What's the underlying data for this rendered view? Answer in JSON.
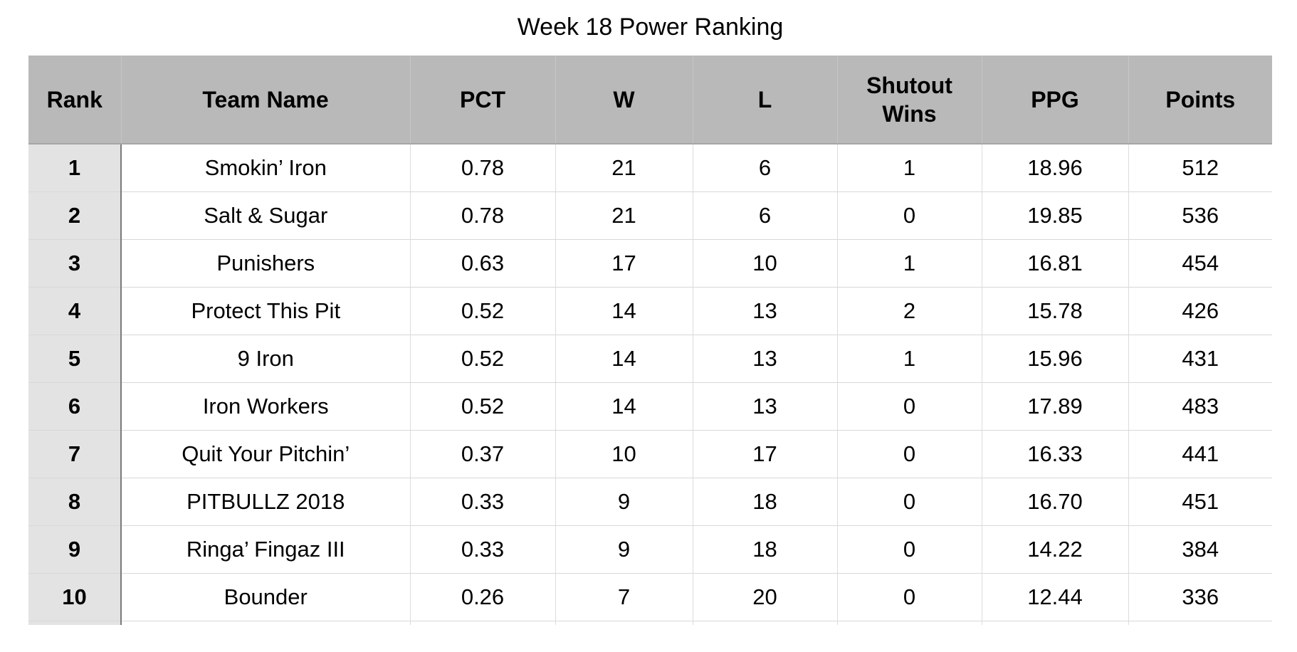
{
  "title": "Week 18 Power Ranking",
  "colors": {
    "text": "#000000",
    "header_bg": "#b9b9b9",
    "rank_bg": "#e3e3e3",
    "row_border": "#d8d8d8",
    "col_border": "#dcdcdc",
    "header_sep": "#c6c6c6",
    "header_bottom": "#a6a6a6",
    "rank_divider": "#7a7a7a"
  },
  "chart_data": {
    "type": "table",
    "title": "Week 18 Power Ranking",
    "columns": [
      "Rank",
      "Team Name",
      "PCT",
      "W",
      "L",
      "Shutout Wins",
      "PPG",
      "Points"
    ],
    "column_keys": [
      "rank",
      "team-name",
      "pct",
      "w",
      "l",
      "shutout-wins",
      "ppg",
      "points"
    ],
    "rows": [
      [
        "1",
        "Smokin’ Iron",
        "0.78",
        "21",
        "6",
        "1",
        "18.96",
        "512"
      ],
      [
        "2",
        "Salt & Sugar",
        "0.78",
        "21",
        "6",
        "0",
        "19.85",
        "536"
      ],
      [
        "3",
        "Punishers",
        "0.63",
        "17",
        "10",
        "1",
        "16.81",
        "454"
      ],
      [
        "4",
        "Protect This Pit",
        "0.52",
        "14",
        "13",
        "2",
        "15.78",
        "426"
      ],
      [
        "5",
        "9 Iron",
        "0.52",
        "14",
        "13",
        "1",
        "15.96",
        "431"
      ],
      [
        "6",
        "Iron Workers",
        "0.52",
        "14",
        "13",
        "0",
        "17.89",
        "483"
      ],
      [
        "7",
        "Quit Your Pitchin’",
        "0.37",
        "10",
        "17",
        "0",
        "16.33",
        "441"
      ],
      [
        "8",
        "PITBULLZ 2018",
        "0.33",
        "9",
        "18",
        "0",
        "16.70",
        "451"
      ],
      [
        "9",
        "Ringa’ Fingaz III",
        "0.33",
        "9",
        "18",
        "0",
        "14.22",
        "384"
      ],
      [
        "10",
        "Bounder",
        "0.26",
        "7",
        "20",
        "0",
        "12.44",
        "336"
      ]
    ]
  }
}
